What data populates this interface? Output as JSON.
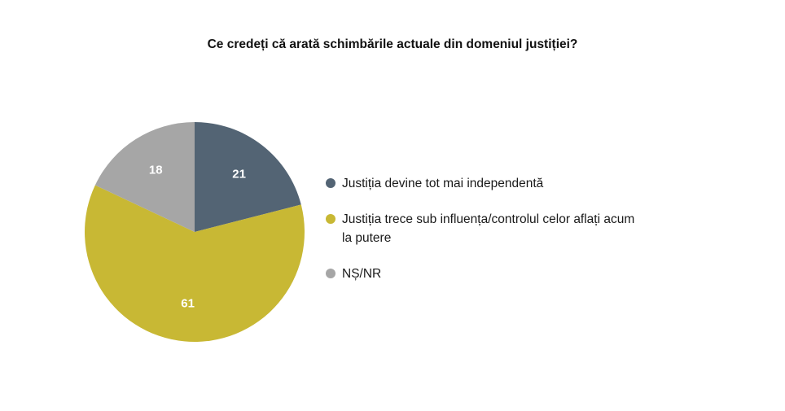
{
  "chart_data": {
    "type": "pie",
    "title": "Ce credeți că arată schimbările actuale din domeniul justiției?",
    "slices": [
      {
        "name": "Justiția devine tot mai independentă",
        "value": 21,
        "label": "21",
        "color": "#536474"
      },
      {
        "name": "Justiția trece sub influența/controlul celor aflați acum la putere",
        "value": 61,
        "label": "61",
        "color": "#C8B834"
      },
      {
        "name": "NȘ/NR",
        "value": 18,
        "label": "18",
        "color": "#A6A6A6"
      }
    ],
    "legend_position": "right"
  }
}
